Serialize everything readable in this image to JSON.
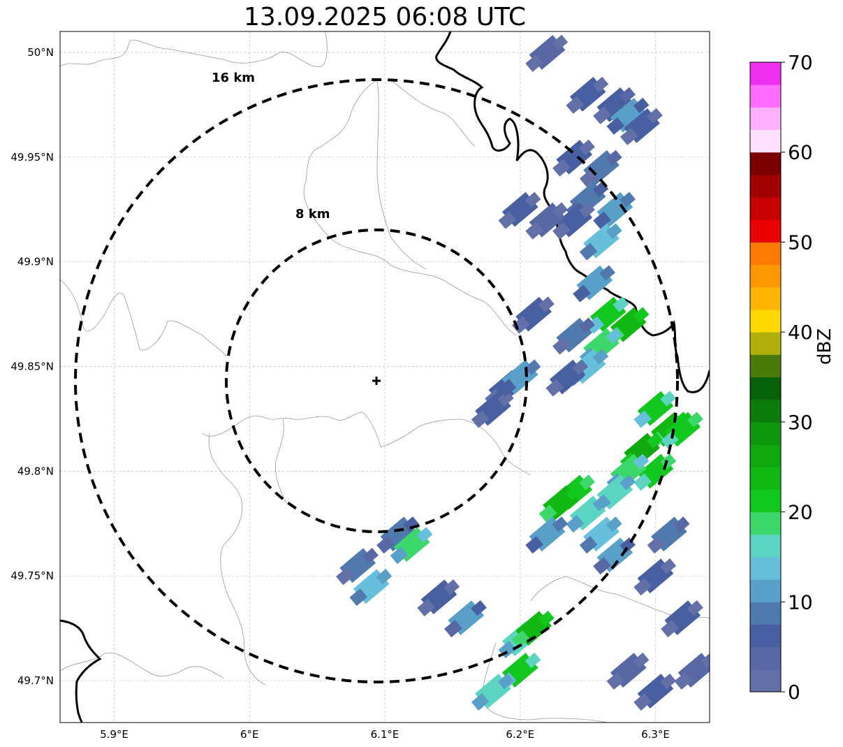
{
  "title": "13.09.2025 06:08 UTC",
  "map": {
    "lon_range": [
      5.86,
      6.34
    ],
    "lat_range": [
      49.68,
      50.01
    ],
    "lon_ticks": [
      {
        "value": 5.9,
        "label": "5.9°E"
      },
      {
        "value": 6.0,
        "label": "6°E"
      },
      {
        "value": 6.1,
        "label": "6.1°E"
      },
      {
        "value": 6.2,
        "label": "6.2°E"
      },
      {
        "value": 6.3,
        "label": "6.3°E"
      }
    ],
    "lat_ticks": [
      {
        "value": 50.0,
        "label": "50°N"
      },
      {
        "value": 49.95,
        "label": "49.95°N"
      },
      {
        "value": 49.9,
        "label": "49.9°N"
      },
      {
        "value": 49.85,
        "label": "49.85°N"
      },
      {
        "value": 49.8,
        "label": "49.8°N"
      },
      {
        "value": 49.75,
        "label": "49.75°N"
      },
      {
        "value": 49.7,
        "label": "49.7°N"
      }
    ],
    "gridlines": true,
    "radar_site": {
      "lon": 6.095,
      "lat": 49.843
    },
    "range_rings": [
      {
        "km": 8,
        "label": "8 km"
      },
      {
        "km": 16,
        "label": "16 km"
      }
    ]
  },
  "colorbar": {
    "label": "dBZ",
    "min": 0,
    "max": 70,
    "tick_values": [
      0,
      10,
      20,
      30,
      40,
      50,
      60,
      70
    ],
    "colors": [
      "#6370a8",
      "#5768a4",
      "#4860a2",
      "#507aae",
      "#59a0c9",
      "#66c0dc",
      "#5cd4c2",
      "#3cd86c",
      "#12c81e",
      "#12b812",
      "#10a80f",
      "#0e960d",
      "#0b7c0c",
      "#06620a",
      "#4a7a0a",
      "#b0b00a",
      "#ffd800",
      "#ffb400",
      "#ff9800",
      "#ff7a00",
      "#e80000",
      "#c80000",
      "#a00000",
      "#7a0000",
      "#ffe0ff",
      "#ffb0ff",
      "#ff6eff",
      "#f030f0"
    ]
  },
  "chart_data": {
    "type": "heatmap",
    "title": "13.09.2025 06:08 UTC",
    "variable": "dBZ",
    "cells": [
      [
        6.22,
        50.0,
        4
      ],
      [
        6.25,
        49.98,
        5
      ],
      [
        6.27,
        49.975,
        7
      ],
      [
        6.28,
        49.97,
        11
      ],
      [
        6.29,
        49.965,
        6
      ],
      [
        6.24,
        49.95,
        6
      ],
      [
        6.26,
        49.945,
        8
      ],
      [
        6.25,
        49.93,
        9
      ],
      [
        6.27,
        49.925,
        12
      ],
      [
        6.24,
        49.92,
        5
      ],
      [
        6.26,
        49.91,
        14
      ],
      [
        6.22,
        49.92,
        4
      ],
      [
        6.2,
        49.925,
        6
      ],
      [
        6.255,
        49.89,
        12
      ],
      [
        6.265,
        49.875,
        20
      ],
      [
        6.28,
        49.87,
        24
      ],
      [
        6.26,
        49.86,
        18
      ],
      [
        6.25,
        49.85,
        14
      ],
      [
        6.21,
        49.875,
        6
      ],
      [
        6.24,
        49.865,
        8
      ],
      [
        6.235,
        49.845,
        5
      ],
      [
        6.3,
        49.83,
        20
      ],
      [
        6.31,
        49.82,
        24
      ],
      [
        6.32,
        49.82,
        22
      ],
      [
        6.29,
        49.81,
        26
      ],
      [
        6.3,
        49.8,
        22
      ],
      [
        6.28,
        49.8,
        18
      ],
      [
        6.27,
        49.79,
        16
      ],
      [
        6.24,
        49.79,
        22
      ],
      [
        6.23,
        49.785,
        24
      ],
      [
        6.25,
        49.78,
        16
      ],
      [
        6.22,
        49.77,
        12
      ],
      [
        6.26,
        49.77,
        14
      ],
      [
        6.27,
        49.76,
        10
      ],
      [
        6.31,
        49.77,
        8
      ],
      [
        6.3,
        49.75,
        6
      ],
      [
        6.19,
        49.84,
        6
      ],
      [
        6.18,
        49.83,
        5
      ],
      [
        6.2,
        49.845,
        12
      ],
      [
        6.11,
        49.77,
        9
      ],
      [
        6.12,
        49.765,
        18
      ],
      [
        6.08,
        49.755,
        8
      ],
      [
        6.09,
        49.745,
        14
      ],
      [
        6.14,
        49.74,
        6
      ],
      [
        6.16,
        49.73,
        10
      ],
      [
        6.2,
        49.72,
        16
      ],
      [
        6.21,
        49.725,
        24
      ],
      [
        6.2,
        49.705,
        20
      ],
      [
        6.18,
        49.695,
        16
      ],
      [
        6.28,
        49.705,
        4
      ],
      [
        6.3,
        49.695,
        5
      ],
      [
        6.33,
        49.705,
        3
      ],
      [
        6.32,
        49.73,
        6
      ]
    ]
  }
}
